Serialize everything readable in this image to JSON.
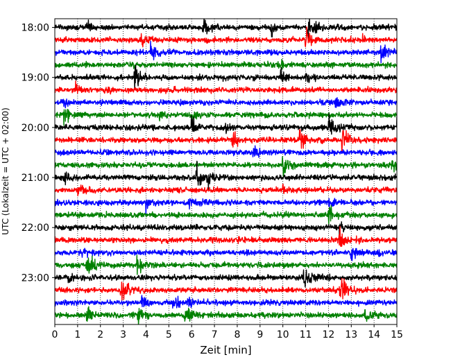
{
  "chart_data": {
    "type": "line",
    "title": "",
    "xlabel": "Zeit  [min]",
    "ylabel": "UTC (Lokalzeit = UTC + 02:00)",
    "xlim": [
      0,
      15
    ],
    "x_ticks": [
      "0",
      "1",
      "2",
      "3",
      "4",
      "5",
      "6",
      "7",
      "8",
      "9",
      "10",
      "11",
      "12",
      "13",
      "14",
      "15"
    ],
    "y_tick_labels": [
      "18:00",
      "19:00",
      "20:00",
      "21:00",
      "22:00",
      "23:00"
    ],
    "y_tick_times": [
      "18:00",
      "19:00",
      "20:00",
      "21:00",
      "22:00",
      "23:00"
    ],
    "trace_interval_minutes": 15,
    "trace_start": "18:00",
    "trace_count": 24,
    "trace_colors": [
      "#000000",
      "#ff0000",
      "#0000ff",
      "#008000"
    ],
    "grid": {
      "x": "dotted",
      "y": "none"
    },
    "traces": [
      {
        "time": "18:00",
        "color": "#000000",
        "events": [
          [
            1.4,
            0.5
          ],
          [
            6.5,
            0.8
          ],
          [
            9.5,
            0.5
          ],
          [
            11.1,
            1.2
          ]
        ]
      },
      {
        "time": "18:15",
        "color": "#ff0000",
        "events": [
          [
            3.8,
            0.6
          ],
          [
            11.0,
            1.0
          ],
          [
            13.5,
            0.5
          ]
        ]
      },
      {
        "time": "18:30",
        "color": "#0000ff",
        "events": [
          [
            4.2,
            0.8
          ],
          [
            14.3,
            0.9
          ]
        ]
      },
      {
        "time": "18:45",
        "color": "#008000",
        "events": [
          [
            9.8,
            0.6
          ]
        ]
      },
      {
        "time": "19:00",
        "color": "#000000",
        "events": [
          [
            3.5,
            0.8
          ],
          [
            9.9,
            0.8
          ],
          [
            11.0,
            0.6
          ]
        ]
      },
      {
        "time": "19:15",
        "color": "#ff0000",
        "events": [
          [
            0.9,
            0.6
          ],
          [
            2.2,
            0.3
          ]
        ]
      },
      {
        "time": "19:30",
        "color": "#0000ff",
        "events": [
          [
            0.4,
            0.5
          ],
          [
            12.3,
            0.6
          ]
        ]
      },
      {
        "time": "19:45",
        "color": "#008000",
        "events": [
          [
            0.4,
            1.0
          ],
          [
            4.6,
            0.6
          ],
          [
            6.0,
            0.5
          ]
        ]
      },
      {
        "time": "20:00",
        "color": "#000000",
        "events": [
          [
            6.0,
            1.1
          ],
          [
            7.5,
            0.4
          ],
          [
            12.0,
            1.2
          ],
          [
            15.0,
            0.6
          ]
        ]
      },
      {
        "time": "20:15",
        "color": "#ff0000",
        "events": [
          [
            7.8,
            0.9
          ],
          [
            10.7,
            1.1
          ],
          [
            12.6,
            1.2
          ]
        ]
      },
      {
        "time": "20:30",
        "color": "#0000ff",
        "events": [
          [
            8.7,
            1.0
          ]
        ]
      },
      {
        "time": "20:45",
        "color": "#008000",
        "events": [
          [
            10.0,
            1.0
          ],
          [
            14.8,
            0.8
          ]
        ]
      },
      {
        "time": "21:00",
        "color": "#000000",
        "events": [
          [
            0.4,
            0.6
          ],
          [
            6.2,
            1.1
          ],
          [
            6.7,
            0.7
          ]
        ]
      },
      {
        "time": "21:15",
        "color": "#ff0000",
        "events": [
          [
            1.0,
            0.6
          ],
          [
            10.0,
            0.4
          ]
        ]
      },
      {
        "time": "21:30",
        "color": "#0000ff",
        "events": [
          [
            4.0,
            0.8
          ],
          [
            5.9,
            0.8
          ],
          [
            12.0,
            0.5
          ]
        ]
      },
      {
        "time": "21:45",
        "color": "#008000",
        "events": [
          [
            12.0,
            0.9
          ]
        ]
      },
      {
        "time": "22:00",
        "color": "#000000",
        "events": [
          [
            12.5,
            0.6
          ]
        ]
      },
      {
        "time": "22:15",
        "color": "#ff0000",
        "events": [
          [
            8.0,
            0.4
          ],
          [
            12.5,
            1.0
          ]
        ]
      },
      {
        "time": "22:30",
        "color": "#0000ff",
        "events": [
          [
            1.2,
            0.6
          ],
          [
            13.0,
            0.8
          ],
          [
            14.2,
            0.4
          ]
        ]
      },
      {
        "time": "22:45",
        "color": "#008000",
        "events": [
          [
            1.4,
            1.2
          ],
          [
            3.6,
            1.0
          ]
        ]
      },
      {
        "time": "23:00",
        "color": "#000000",
        "events": [
          [
            0.5,
            0.5
          ],
          [
            10.9,
            1.1
          ]
        ]
      },
      {
        "time": "23:15",
        "color": "#ff0000",
        "events": [
          [
            2.9,
            1.2
          ],
          [
            12.5,
            1.2
          ]
        ]
      },
      {
        "time": "23:30",
        "color": "#0000ff",
        "events": [
          [
            3.8,
            0.9
          ],
          [
            5.2,
            0.9
          ],
          [
            5.8,
            0.6
          ]
        ]
      },
      {
        "time": "23:45",
        "color": "#008000",
        "events": [
          [
            1.4,
            0.8
          ],
          [
            3.6,
            0.8
          ],
          [
            5.7,
            1.0
          ],
          [
            13.6,
            0.7
          ]
        ]
      }
    ]
  }
}
